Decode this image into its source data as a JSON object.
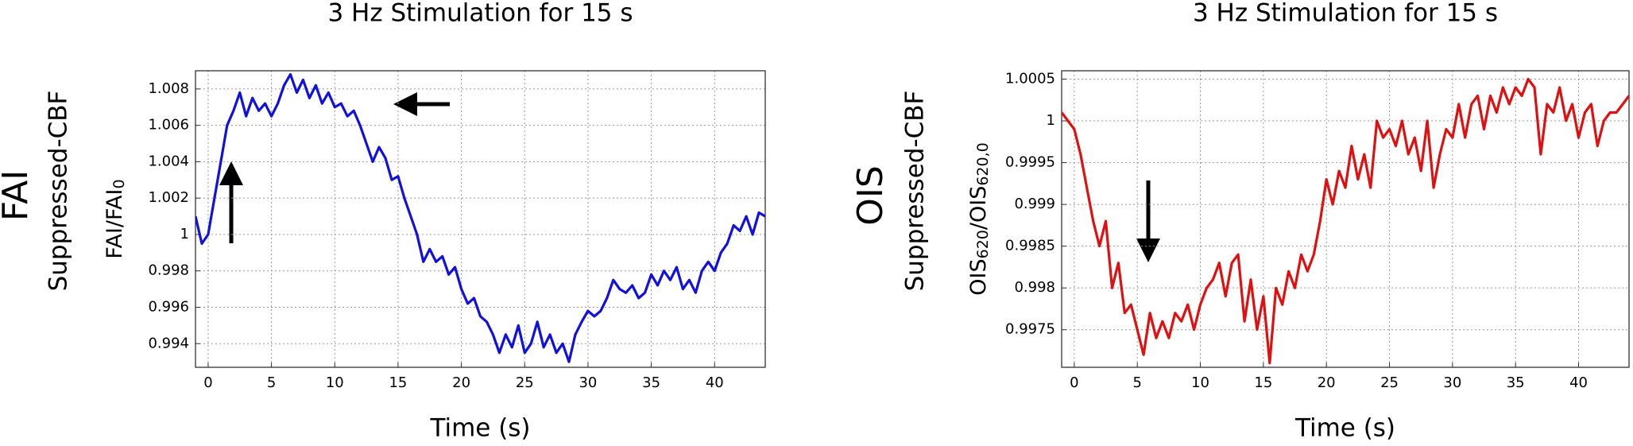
{
  "chart_data": [
    {
      "type": "line",
      "title": "3 Hz Stimulation for 15 s",
      "xlabel": "Time (s)",
      "ylabel": [
        {
          "text": "FAI/FAI"
        },
        {
          "sub": "0"
        }
      ],
      "annotations": [
        {
          "text": "FAI",
          "color": "#1f1fe6"
        },
        {
          "text": "Suppressed-CBF"
        }
      ],
      "color": "#1010e0",
      "grid": true,
      "xlim": [
        -1,
        44
      ],
      "ylim": [
        0.9927,
        1.009
      ],
      "xticks": [
        0,
        5,
        10,
        15,
        20,
        25,
        30,
        35,
        40
      ],
      "yticks": [
        0.994,
        0.996,
        0.998,
        1,
        1.002,
        1.004,
        1.006,
        1.008
      ],
      "x": [
        -1,
        -0.5,
        0,
        0.5,
        1,
        1.5,
        2,
        2.5,
        3,
        3.5,
        4,
        4.5,
        5,
        5.5,
        6,
        6.5,
        7,
        7.5,
        8,
        8.5,
        9,
        9.5,
        10,
        10.5,
        11,
        11.5,
        12,
        12.5,
        13,
        13.5,
        14,
        14.5,
        15,
        15.5,
        16,
        16.5,
        17,
        17.5,
        18,
        18.5,
        19,
        19.5,
        20,
        20.5,
        21,
        21.5,
        22,
        22.5,
        23,
        23.5,
        24,
        24.5,
        25,
        25.5,
        26,
        26.5,
        27,
        27.5,
        28,
        28.5,
        29,
        29.5,
        30,
        30.5,
        31,
        31.5,
        32,
        32.5,
        33,
        33.5,
        34,
        34.5,
        35,
        35.5,
        36,
        36.5,
        37,
        37.5,
        38,
        38.5,
        39,
        39.5,
        40,
        40.5,
        41,
        41.5,
        42,
        42.5,
        43,
        43.5,
        44
      ],
      "values": [
        1.001,
        0.9995,
        1.0,
        1.002,
        1.004,
        1.006,
        1.0068,
        1.0078,
        1.0065,
        1.0075,
        1.0068,
        1.0072,
        1.0065,
        1.0072,
        1.0082,
        1.0088,
        1.0078,
        1.0085,
        1.0075,
        1.0082,
        1.0072,
        1.0078,
        1.007,
        1.0072,
        1.0065,
        1.0068,
        1.006,
        1.005,
        1.004,
        1.0048,
        1.0042,
        1.003,
        1.0032,
        1.002,
        1.001,
        1.0,
        0.9985,
        0.9992,
        0.9985,
        0.9988,
        0.9978,
        0.9982,
        0.997,
        0.9962,
        0.9965,
        0.9955,
        0.9952,
        0.9945,
        0.9935,
        0.9945,
        0.9938,
        0.995,
        0.9935,
        0.994,
        0.9952,
        0.9938,
        0.9945,
        0.9935,
        0.994,
        0.993,
        0.9945,
        0.9952,
        0.9958,
        0.9955,
        0.9958,
        0.9965,
        0.9975,
        0.997,
        0.9968,
        0.9972,
        0.9965,
        0.9968,
        0.9978,
        0.9972,
        0.998,
        0.9975,
        0.9982,
        0.997,
        0.9975,
        0.9968,
        0.998,
        0.9985,
        0.998,
        0.999,
        0.9995,
        1.0005,
        1.0002,
        1.001,
        1.0,
        1.0012,
        1.001
      ]
    },
    {
      "type": "line",
      "title": "3 Hz Stimulation for 15 s",
      "xlabel": "Time (s)",
      "ylabel": [
        {
          "text": "OIS"
        },
        {
          "sub": "620"
        },
        {
          "text": "/OIS"
        },
        {
          "sub": "620,0"
        }
      ],
      "annotations": [
        {
          "text": "OIS",
          "color": "#e01010"
        },
        {
          "text": "Suppressed-CBF"
        }
      ],
      "color": "#e01010",
      "grid": true,
      "xlim": [
        -1,
        44
      ],
      "ylim": [
        0.99705,
        1.0006
      ],
      "xticks": [
        0,
        5,
        10,
        15,
        20,
        25,
        30,
        35,
        40
      ],
      "yticks": [
        0.9975,
        0.998,
        0.9985,
        0.999,
        0.9995,
        1,
        1.0005
      ],
      "x": [
        -1,
        -0.5,
        0,
        0.5,
        1,
        1.5,
        2,
        2.5,
        3,
        3.5,
        4,
        4.5,
        5,
        5.5,
        6,
        6.5,
        7,
        7.5,
        8,
        8.5,
        9,
        9.5,
        10,
        10.5,
        11,
        11.5,
        12,
        12.5,
        13,
        13.5,
        14,
        14.5,
        15,
        15.5,
        16,
        16.5,
        17,
        17.5,
        18,
        18.5,
        19,
        19.5,
        20,
        20.5,
        21,
        21.5,
        22,
        22.5,
        23,
        23.5,
        24,
        24.5,
        25,
        25.5,
        26,
        26.5,
        27,
        27.5,
        28,
        28.5,
        29,
        29.5,
        30,
        30.5,
        31,
        31.5,
        32,
        32.5,
        33,
        33.5,
        34,
        34.5,
        35,
        35.5,
        36,
        36.5,
        37,
        37.5,
        38,
        38.5,
        39,
        39.5,
        40,
        40.5,
        41,
        41.5,
        42,
        42.5,
        43,
        43.5,
        44
      ],
      "values": [
        1.0001,
        1.0,
        0.9999,
        0.9996,
        0.9992,
        0.9988,
        0.9985,
        0.9988,
        0.998,
        0.9983,
        0.9977,
        0.9978,
        0.9975,
        0.9972,
        0.9977,
        0.9974,
        0.9976,
        0.9974,
        0.9977,
        0.9976,
        0.9978,
        0.9975,
        0.9978,
        0.998,
        0.9981,
        0.9983,
        0.9979,
        0.9983,
        0.9984,
        0.9976,
        0.9981,
        0.9975,
        0.9979,
        0.9971,
        0.998,
        0.9978,
        0.9982,
        0.998,
        0.9984,
        0.9982,
        0.9984,
        0.9988,
        0.9993,
        0.999,
        0.9994,
        0.9992,
        0.9997,
        0.9993,
        0.9996,
        0.9992,
        1.0,
        0.9998,
        0.9999,
        0.9997,
        1.0,
        0.9996,
        0.9998,
        0.9994,
        1.0,
        0.9992,
        0.9996,
        0.9999,
        0.9998,
        1.0002,
        0.9998,
        1.0002,
        1.0003,
        0.9999,
        1.0003,
        1.0001,
        1.0004,
        1.0002,
        1.0004,
        1.0003,
        1.0005,
        1.0004,
        0.9996,
        1.0002,
        1.0001,
        1.0004,
        1.0,
        1.0002,
        0.9998,
        1.0001,
        1.0002,
        0.9997,
        1.0,
        1.0001,
        1.0001,
        1.0002,
        1.0003
      ]
    }
  ]
}
